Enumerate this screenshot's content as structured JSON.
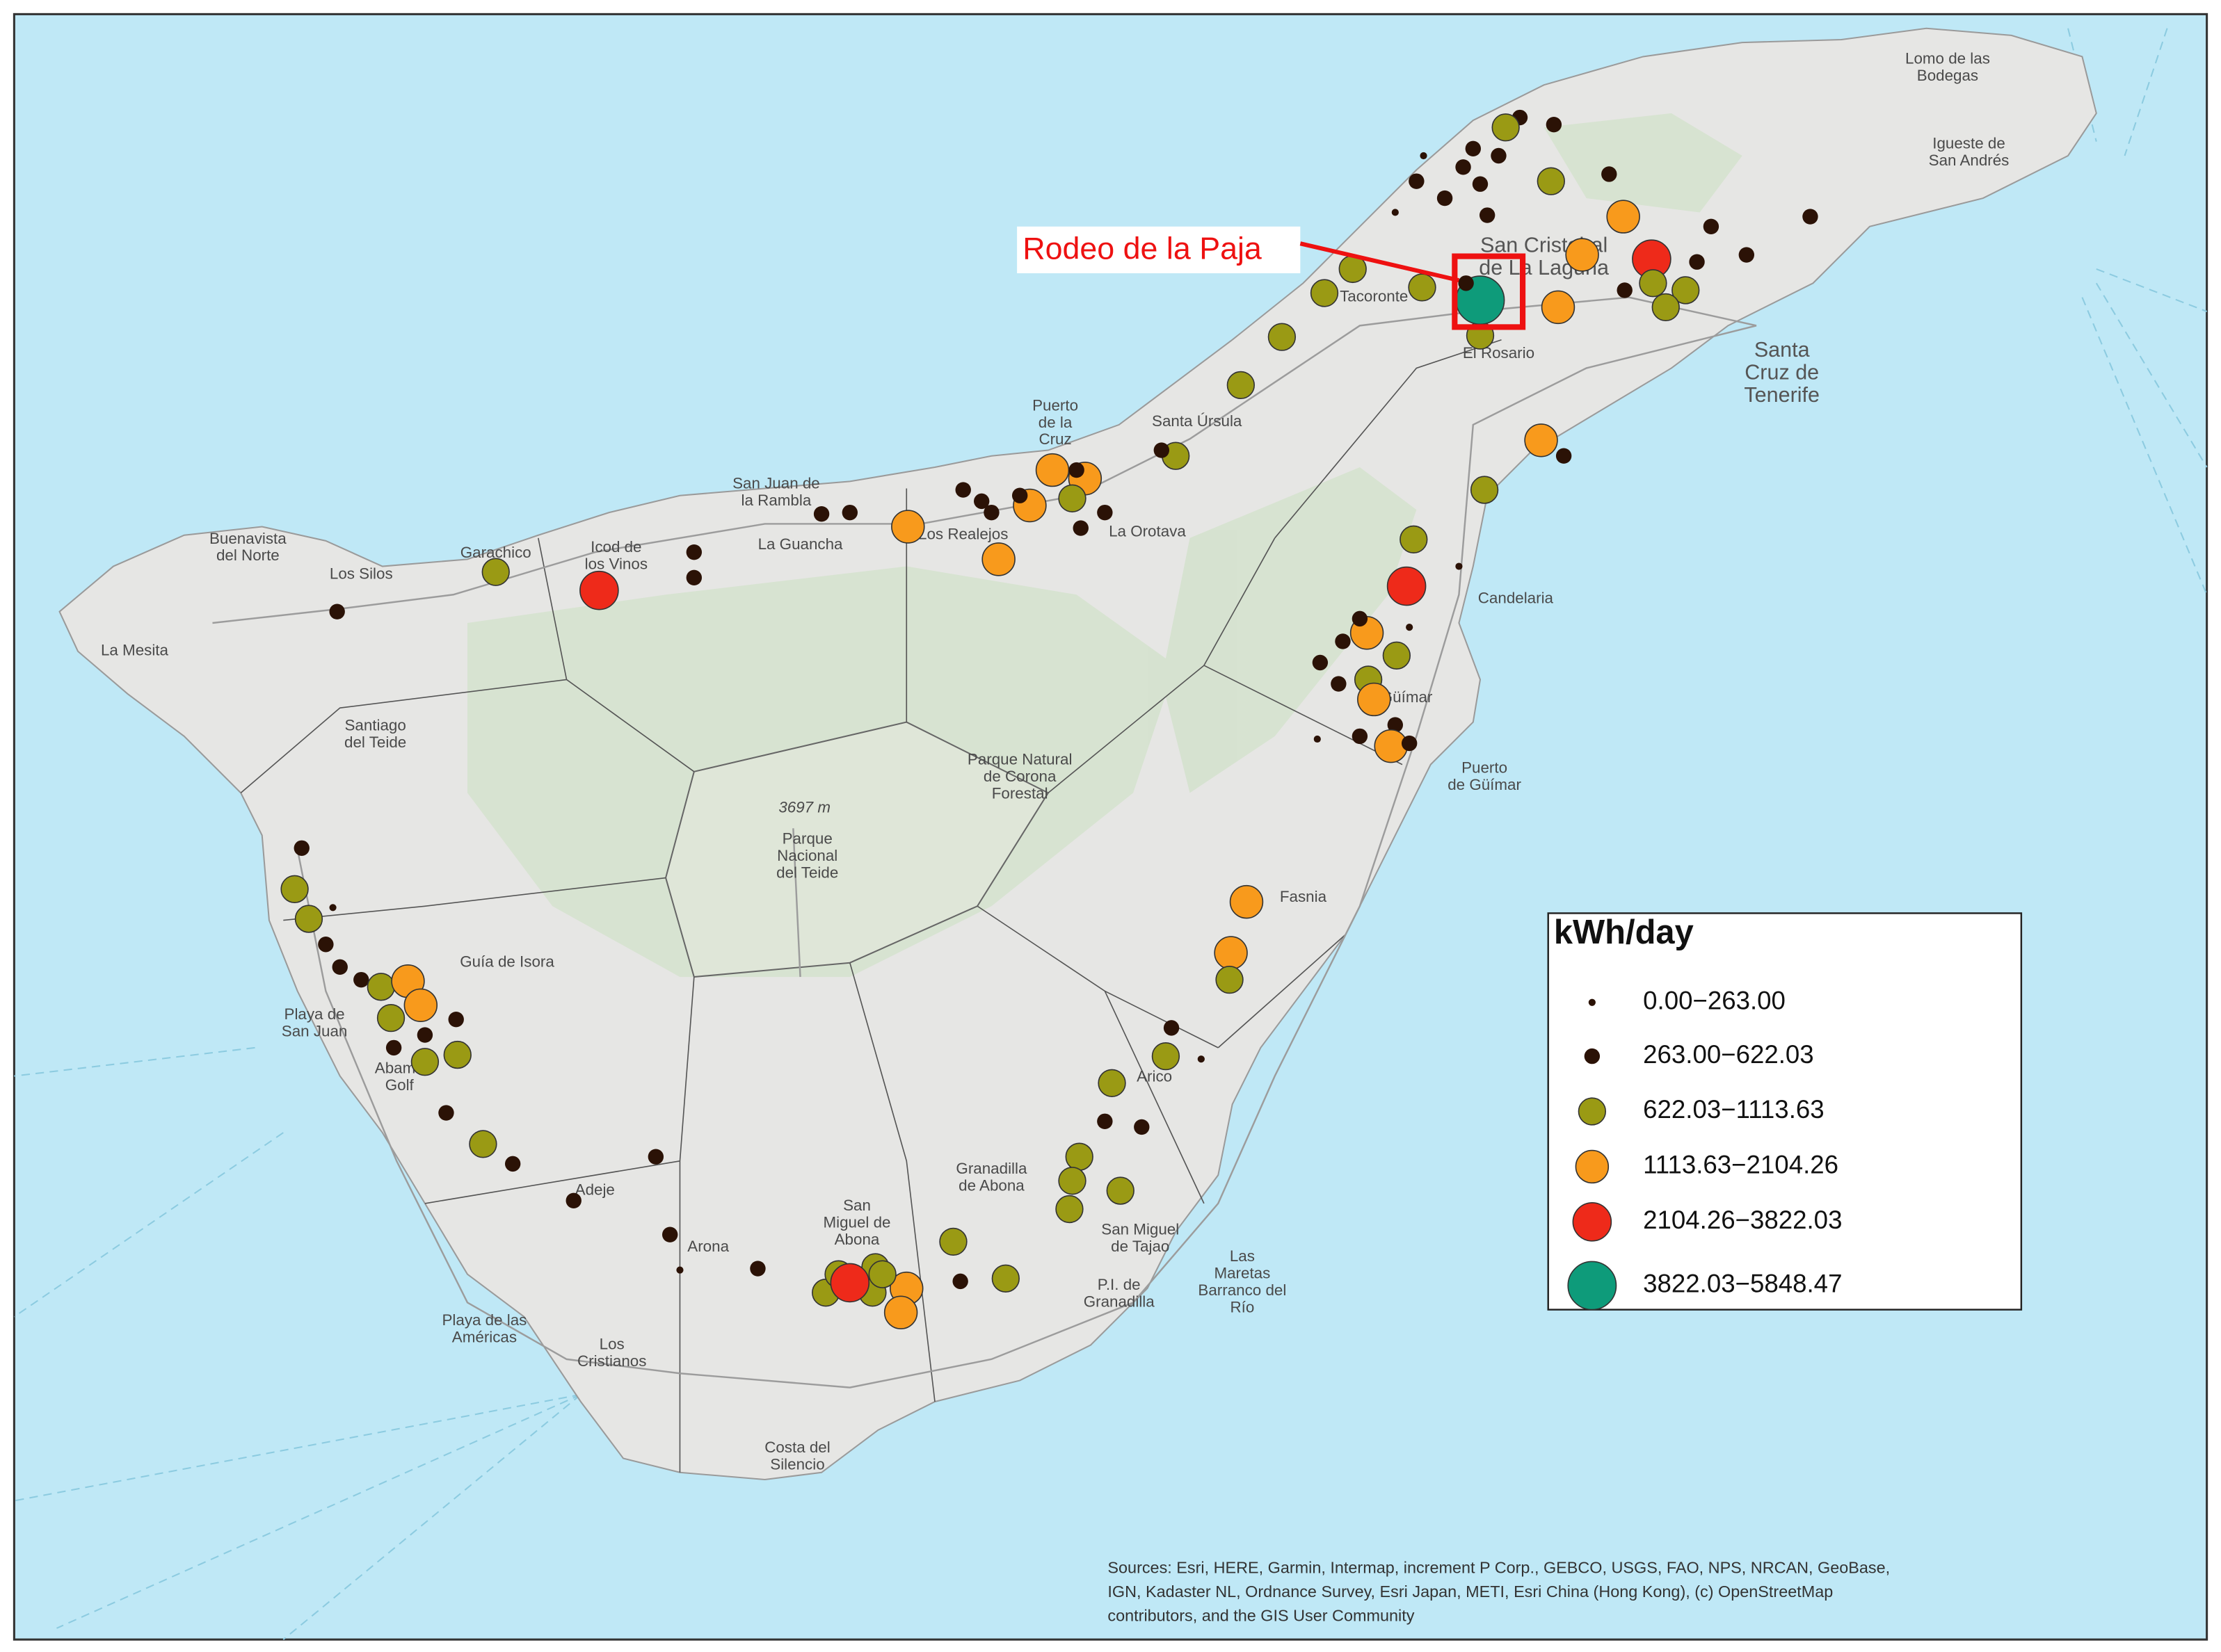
{
  "annotation": {
    "text": "Rodeo de la Paja",
    "color": "#ee1111"
  },
  "legend": {
    "title": "kWh/day",
    "classes": [
      {
        "label": "0.00−263.00",
        "color": "#2b1206"
      },
      {
        "label": "263.00−622.03",
        "color": "#2b1206"
      },
      {
        "label": "622.03−1113.63",
        "color": "#9a9a14"
      },
      {
        "label": "1113.63−2104.26",
        "color": "#f89a1c"
      },
      {
        "label": "2104.26−3822.03",
        "color": "#ee2a1a"
      },
      {
        "label": "3822.03−5848.47",
        "color": "#0e9b7a"
      }
    ]
  },
  "places": [
    [
      "Lomo de las",
      "Bodegas"
    ],
    [
      "Igueste de",
      "San Andrés"
    ],
    [
      "San Cristobal",
      "de La Laguna"
    ],
    [
      "Santa",
      "Cruz de",
      "Tenerife"
    ],
    [
      "El Rosario"
    ],
    [
      "Tacoronte"
    ],
    [
      "Santa Úrsula"
    ],
    [
      "Puerto",
      "de la",
      "Cruz"
    ],
    [
      "San Juan de",
      "la Rambla"
    ],
    [
      "La Guancha"
    ],
    [
      "Los Realejos"
    ],
    [
      "La Orotava"
    ],
    [
      "Icod de",
      "los Vinos"
    ],
    [
      "Garachico"
    ],
    [
      "Buenavista",
      "del Norte"
    ],
    [
      "Los Silos"
    ],
    [
      "La Mesita"
    ],
    [
      "Santiago",
      "del Teide"
    ],
    [
      "Candelaria"
    ],
    [
      "Güímar"
    ],
    [
      "Puerto",
      "de Güímar"
    ],
    [
      "Parque Natural",
      "de Corona",
      "Forestal"
    ],
    [
      "3697 m"
    ],
    [
      "Parque",
      "Nacional",
      "del Teide"
    ],
    [
      "Fasnia"
    ],
    [
      "Guía de Isora"
    ],
    [
      "Playa de",
      "San Juan"
    ],
    [
      "Abama",
      "Golf"
    ],
    [
      "Arico"
    ],
    [
      "Granadilla",
      "de Abona"
    ],
    [
      "San",
      "Miguel de",
      "Abona"
    ],
    [
      "San Miguel",
      "de Tajao"
    ],
    [
      "Las",
      "Maretas",
      "Barranco del",
      "Río"
    ],
    [
      "P.I. de",
      "Granadilla"
    ],
    [
      "Adeje"
    ],
    [
      "Arona"
    ],
    [
      "Playa de las",
      "Américas"
    ],
    [
      "Los",
      "Cristianos"
    ],
    [
      "Costa del",
      "Silencio"
    ]
  ],
  "sources": [
    "Sources: Esri, HERE, Garmin, Intermap, increment P Corp., GEBCO, USGS, FAO, NPS, NRCAN, GeoBase,",
    "IGN, Kadaster NL, Ordnance Survey, Esri Japan, METI, Esri China (Hong Kong), (c) OpenStreetMap",
    "contributors, and the GIS User Community"
  ]
}
